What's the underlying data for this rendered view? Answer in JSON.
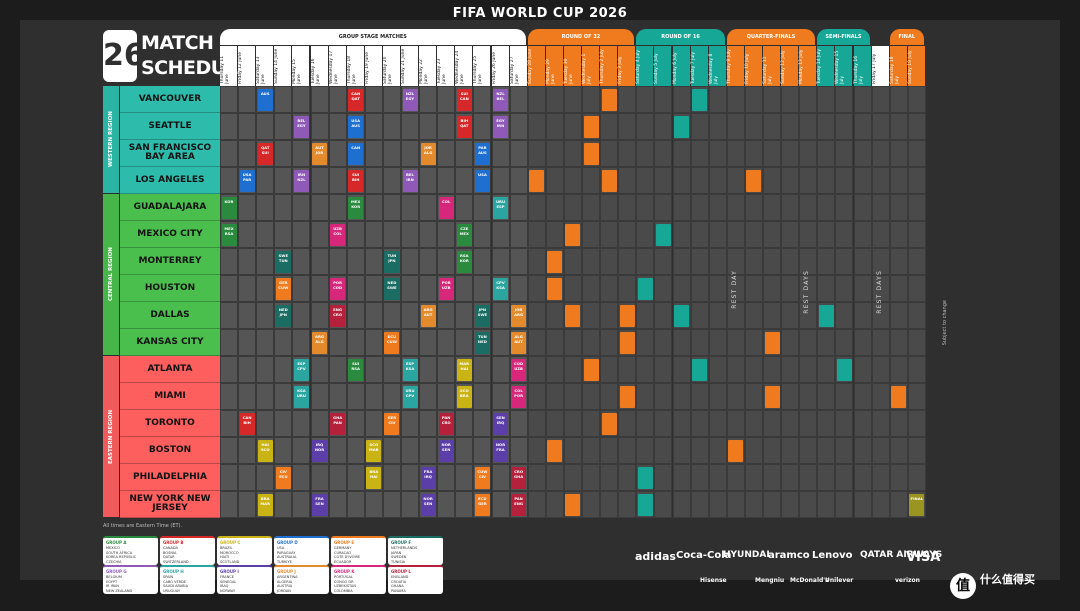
{
  "header": {
    "title": "FIFA WORLD CUP 2026"
  },
  "brand": {
    "year_mark": "26",
    "line1": "MATCH",
    "line2": "SCHEDULE"
  },
  "stages": [
    {
      "label": "GROUP STAGE MATCHES",
      "color": "#ffffff",
      "text": "#222222"
    },
    {
      "label": "ROUND OF 32",
      "color": "#f07b1e",
      "text": "#ffffff"
    },
    {
      "label": "ROUND OF 16",
      "color": "#17a796",
      "text": "#ffffff"
    },
    {
      "label": "QUARTER-FINALS",
      "color": "#f07b1e",
      "text": "#ffffff"
    },
    {
      "label": "SEMI-FINALS",
      "color": "#17a796",
      "text": "#ffffff"
    },
    {
      "label": "FINAL",
      "color": "#f07b1e",
      "text": "#ffffff"
    }
  ],
  "dates": [
    "Thursday 11 June",
    "Friday 12 June",
    "Saturday 13 June",
    "Sunday 14 June",
    "Monday 15 June",
    "Tuesday 16 June",
    "Wednesday 17 June",
    "Thursday 18 June",
    "Friday 19 June",
    "Saturday 20 June",
    "Sunday 21 June",
    "Monday 22 June",
    "Tuesday 23 June",
    "Wednesday 24 June",
    "Thursday 25 June",
    "Friday 26 June",
    "Saturday 27 June",
    "Sunday 28 June",
    "Monday 29 June",
    "Tuesday 30 June",
    "Wednesday 1 July",
    "Thursday 2 July",
    "Friday 3 July",
    "Saturday 4 July",
    "Sunday 5 July",
    "Monday 6 July",
    "Tuesday 7 July",
    "Wednesday 8 July",
    "Thursday 9 July",
    "Friday 10 July",
    "Saturday 11 July",
    "Sunday 12 July",
    "Monday 13 July",
    "Tuesday 14 July",
    "Wednesday 15 July",
    "Thursday 16 July",
    "Friday 17 July",
    "Saturday 18 July",
    "Sunday 19 July"
  ],
  "regions": [
    {
      "label": "WESTERN REGION",
      "color": "#2bb3a3"
    },
    {
      "label": "CENTRAL REGION",
      "color": "#47b649"
    },
    {
      "label": "EASTERN REGION",
      "color": "#f15a5a"
    }
  ],
  "cities": [
    {
      "name": "VANCOUVER",
      "region": 0
    },
    {
      "name": "SEATTLE",
      "region": 0
    },
    {
      "name": "SAN FRANCISCO BAY AREA",
      "region": 0
    },
    {
      "name": "LOS ANGELES",
      "region": 0
    },
    {
      "name": "GUADALAJARA",
      "region": 1
    },
    {
      "name": "MEXICO CITY",
      "region": 1
    },
    {
      "name": "MONTERREY",
      "region": 1
    },
    {
      "name": "HOUSTON",
      "region": 1
    },
    {
      "name": "DALLAS",
      "region": 1
    },
    {
      "name": "KANSAS CITY",
      "region": 1
    },
    {
      "name": "ATLANTA",
      "region": 2
    },
    {
      "name": "MIAMI",
      "region": 2
    },
    {
      "name": "TORONTO",
      "region": 2
    },
    {
      "name": "BOSTON",
      "region": 2
    },
    {
      "name": "PHILADELPHIA",
      "region": 2
    },
    {
      "name": "NEW YORK NEW JERSEY",
      "region": 2
    }
  ],
  "rest_labels": [
    "REST DAY",
    "REST DAYS",
    "REST DAYS"
  ],
  "side_note": "Subject to change",
  "footnote": "All times are Eastern Time (ET).",
  "matches": [
    {
      "r": 0,
      "c": 2,
      "t": "AUS",
      "color": "#1f6fd0"
    },
    {
      "r": 0,
      "c": 7,
      "t": "CAN QAT",
      "color": "#d62828"
    },
    {
      "r": 0,
      "c": 10,
      "t": "NZL EGY",
      "color": "#8e59b7"
    },
    {
      "r": 0,
      "c": 13,
      "t": "SUI CAN",
      "color": "#d62828"
    },
    {
      "r": 0,
      "c": 15,
      "t": "NZL BEL",
      "color": "#8e59b7"
    },
    {
      "r": 0,
      "c": 21,
      "t": "",
      "color": "#f07b1e"
    },
    {
      "r": 0,
      "c": 26,
      "t": "",
      "color": "#17a796"
    },
    {
      "r": 1,
      "c": 4,
      "t": "BEL EGY",
      "color": "#8e59b7"
    },
    {
      "r": 1,
      "c": 7,
      "t": "USA AUS",
      "color": "#1f6fd0"
    },
    {
      "r": 1,
      "c": 13,
      "t": "BIH QAT",
      "color": "#d62828"
    },
    {
      "r": 1,
      "c": 15,
      "t": "EGY IRN",
      "color": "#8e59b7"
    },
    {
      "r": 1,
      "c": 20,
      "t": "",
      "color": "#f07b1e"
    },
    {
      "r": 1,
      "c": 25,
      "t": "",
      "color": "#17a796"
    },
    {
      "r": 2,
      "c": 2,
      "t": "QAT SUI",
      "color": "#d62828"
    },
    {
      "r": 2,
      "c": 5,
      "t": "AUT JOR",
      "color": "#e38b2c"
    },
    {
      "r": 2,
      "c": 7,
      "t": "CAN",
      "color": "#1f6fd0"
    },
    {
      "r": 2,
      "c": 11,
      "t": "JOR ALG",
      "color": "#e38b2c"
    },
    {
      "r": 2,
      "c": 14,
      "t": "PAR AUS",
      "color": "#1f6fd0"
    },
    {
      "r": 2,
      "c": 20,
      "t": "",
      "color": "#f07b1e"
    },
    {
      "r": 3,
      "c": 1,
      "t": "USA PAR",
      "color": "#1f6fd0"
    },
    {
      "r": 3,
      "c": 4,
      "t": "IRN NZL",
      "color": "#8e59b7"
    },
    {
      "r": 3,
      "c": 7,
      "t": "SUI BIH",
      "color": "#d62828"
    },
    {
      "r": 3,
      "c": 10,
      "t": "BEL IRN",
      "color": "#8e59b7"
    },
    {
      "r": 3,
      "c": 14,
      "t": "USA",
      "color": "#1f6fd0"
    },
    {
      "r": 3,
      "c": 17,
      "t": "",
      "color": "#f07b1e"
    },
    {
      "r": 3,
      "c": 21,
      "t": "",
      "color": "#f07b1e"
    },
    {
      "r": 3,
      "c": 29,
      "t": "",
      "color": "#f07b1e"
    },
    {
      "r": 4,
      "c": 0,
      "t": "KOR",
      "color": "#2a8a3e"
    },
    {
      "r": 4,
      "c": 7,
      "t": "MEX KOR",
      "color": "#2a8a3e"
    },
    {
      "r": 4,
      "c": 12,
      "t": "COL",
      "color": "#d6277b"
    },
    {
      "r": 4,
      "c": 15,
      "t": "URU ESP",
      "color": "#2aa5a0"
    },
    {
      "r": 5,
      "c": 0,
      "t": "MEX RSA",
      "color": "#2a8a3e"
    },
    {
      "r": 5,
      "c": 6,
      "t": "UZB COL",
      "color": "#d6277b"
    },
    {
      "r": 5,
      "c": 13,
      "t": "CZE MEX",
      "color": "#2a8a3e"
    },
    {
      "r": 5,
      "c": 19,
      "t": "",
      "color": "#f07b1e"
    },
    {
      "r": 5,
      "c": 24,
      "t": "",
      "color": "#17a796"
    },
    {
      "r": 6,
      "c": 3,
      "t": "SWE TUN",
      "color": "#1b6d63"
    },
    {
      "r": 6,
      "c": 9,
      "t": "TUN JPN",
      "color": "#1b6d63"
    },
    {
      "r": 6,
      "c": 13,
      "t": "RSA KOR",
      "color": "#2a8a3e"
    },
    {
      "r": 6,
      "c": 18,
      "t": "",
      "color": "#f07b1e"
    },
    {
      "r": 7,
      "c": 3,
      "t": "GER CUW",
      "color": "#f07b1e"
    },
    {
      "r": 7,
      "c": 6,
      "t": "POR COD",
      "color": "#d6277b"
    },
    {
      "r": 7,
      "c": 9,
      "t": "NED SWE",
      "color": "#1b6d63"
    },
    {
      "r": 7,
      "c": 12,
      "t": "POR UZB",
      "color": "#d6277b"
    },
    {
      "r": 7,
      "c": 15,
      "t": "CPV KSA",
      "color": "#2aa5a0"
    },
    {
      "r": 7,
      "c": 18,
      "t": "",
      "color": "#f07b1e"
    },
    {
      "r": 7,
      "c": 23,
      "t": "",
      "color": "#17a796"
    },
    {
      "r": 8,
      "c": 3,
      "t": "NED JPN",
      "color": "#1b6d63"
    },
    {
      "r": 8,
      "c": 6,
      "t": "ENG CRO",
      "color": "#b5213b"
    },
    {
      "r": 8,
      "c": 11,
      "t": "ARG AUT",
      "color": "#e38b2c"
    },
    {
      "r": 8,
      "c": 14,
      "t": "JPN SWE",
      "color": "#1b6d63"
    },
    {
      "r": 8,
      "c": 16,
      "t": "JOR ARG",
      "color": "#e38b2c"
    },
    {
      "r": 8,
      "c": 19,
      "t": "",
      "color": "#f07b1e"
    },
    {
      "r": 8,
      "c": 22,
      "t": "",
      "color": "#f07b1e"
    },
    {
      "r": 8,
      "c": 25,
      "t": "",
      "color": "#17a796"
    },
    {
      "r": 8,
      "c": 33,
      "t": "",
      "color": "#17a796"
    },
    {
      "r": 9,
      "c": 5,
      "t": "ARG ALG",
      "color": "#e38b2c"
    },
    {
      "r": 9,
      "c": 9,
      "t": "ECU CUW",
      "color": "#f07b1e"
    },
    {
      "r": 9,
      "c": 14,
      "t": "TUN NED",
      "color": "#1b6d63"
    },
    {
      "r": 9,
      "c": 16,
      "t": "ALG AUT",
      "color": "#e38b2c"
    },
    {
      "r": 9,
      "c": 22,
      "t": "",
      "color": "#f07b1e"
    },
    {
      "r": 9,
      "c": 30,
      "t": "",
      "color": "#f07b1e"
    },
    {
      "r": 10,
      "c": 4,
      "t": "ESP CPV",
      "color": "#2aa5a0"
    },
    {
      "r": 10,
      "c": 7,
      "t": "SUI RSA",
      "color": "#2a8a3e"
    },
    {
      "r": 10,
      "c": 10,
      "t": "ESP KSA",
      "color": "#2aa5a0"
    },
    {
      "r": 10,
      "c": 13,
      "t": "MAR HAI",
      "color": "#c9b315"
    },
    {
      "r": 10,
      "c": 16,
      "t": "COD UZB",
      "color": "#d6277b"
    },
    {
      "r": 10,
      "c": 20,
      "t": "",
      "color": "#f07b1e"
    },
    {
      "r": 10,
      "c": 26,
      "t": "",
      "color": "#17a796"
    },
    {
      "r": 10,
      "c": 34,
      "t": "",
      "color": "#17a796"
    },
    {
      "r": 11,
      "c": 4,
      "t": "KSA URU",
      "color": "#2aa5a0"
    },
    {
      "r": 11,
      "c": 10,
      "t": "URU CPV",
      "color": "#2aa5a0"
    },
    {
      "r": 11,
      "c": 13,
      "t": "SCO BRA",
      "color": "#c9b315"
    },
    {
      "r": 11,
      "c": 16,
      "t": "COL POR",
      "color": "#d6277b"
    },
    {
      "r": 11,
      "c": 22,
      "t": "",
      "color": "#f07b1e"
    },
    {
      "r": 11,
      "c": 30,
      "t": "",
      "color": "#f07b1e"
    },
    {
      "r": 11,
      "c": 37,
      "t": "",
      "color": "#f07b1e"
    },
    {
      "r": 12,
      "c": 1,
      "t": "CAN BIH",
      "color": "#d62828"
    },
    {
      "r": 12,
      "c": 6,
      "t": "GHA PAN",
      "color": "#b5213b"
    },
    {
      "r": 12,
      "c": 9,
      "t": "GER CIV",
      "color": "#f07b1e"
    },
    {
      "r": 12,
      "c": 12,
      "t": "PAN CRO",
      "color": "#b5213b"
    },
    {
      "r": 12,
      "c": 15,
      "t": "SEN IRQ",
      "color": "#5b3ea8"
    },
    {
      "r": 12,
      "c": 21,
      "t": "",
      "color": "#f07b1e"
    },
    {
      "r": 13,
      "c": 2,
      "t": "HAI SCO",
      "color": "#c9b315"
    },
    {
      "r": 13,
      "c": 5,
      "t": "IRQ NOR",
      "color": "#5b3ea8"
    },
    {
      "r": 13,
      "c": 8,
      "t": "SCO MAR",
      "color": "#c9b315"
    },
    {
      "r": 13,
      "c": 12,
      "t": "NOR SEN",
      "color": "#5b3ea8"
    },
    {
      "r": 13,
      "c": 15,
      "t": "NOR FRA",
      "color": "#5b3ea8"
    },
    {
      "r": 13,
      "c": 18,
      "t": "",
      "color": "#f07b1e"
    },
    {
      "r": 13,
      "c": 28,
      "t": "",
      "color": "#f07b1e"
    },
    {
      "r": 14,
      "c": 3,
      "t": "CIV ECU",
      "color": "#f07b1e"
    },
    {
      "r": 14,
      "c": 8,
      "t": "BRA HAI",
      "color": "#c9b315"
    },
    {
      "r": 14,
      "c": 11,
      "t": "FRA IRQ",
      "color": "#5b3ea8"
    },
    {
      "r": 14,
      "c": 14,
      "t": "CUW CIV",
      "color": "#f07b1e"
    },
    {
      "r": 14,
      "c": 16,
      "t": "CRO GHA",
      "color": "#b5213b"
    },
    {
      "r": 14,
      "c": 23,
      "t": "",
      "color": "#17a796"
    },
    {
      "r": 15,
      "c": 2,
      "t": "BRA MAR",
      "color": "#c9b315"
    },
    {
      "r": 15,
      "c": 5,
      "t": "FRA SEN",
      "color": "#5b3ea8"
    },
    {
      "r": 15,
      "c": 11,
      "t": "NOR SEN",
      "color": "#5b3ea8"
    },
    {
      "r": 15,
      "c": 14,
      "t": "ECU GER",
      "color": "#f07b1e"
    },
    {
      "r": 15,
      "c": 16,
      "t": "PAN ENG",
      "color": "#b5213b"
    },
    {
      "r": 15,
      "c": 19,
      "t": "",
      "color": "#f07b1e"
    },
    {
      "r": 15,
      "c": 23,
      "t": "",
      "color": "#17a796"
    },
    {
      "r": 15,
      "c": 38,
      "t": "FINAL",
      "color": "#9a9420"
    }
  ],
  "groups": [
    {
      "name": "GROUP A",
      "color": "#2a8a3e",
      "teams": [
        "MEXICO",
        "SOUTH AFRICA",
        "KOREA REPUBLIC",
        "CZECHIA"
      ]
    },
    {
      "name": "GROUP B",
      "color": "#d62828",
      "teams": [
        "CANADA",
        "BOSNIA",
        "QATAR",
        "SWITZERLAND"
      ]
    },
    {
      "name": "GROUP C",
      "color": "#c9b315",
      "teams": [
        "BRAZIL",
        "MOROCCO",
        "HAITI",
        "SCOTLAND"
      ]
    },
    {
      "name": "GROUP D",
      "color": "#1f6fd0",
      "teams": [
        "USA",
        "PARAGUAY",
        "AUSTRALIA",
        "TURKIYE"
      ]
    },
    {
      "name": "GROUP E",
      "color": "#f07b1e",
      "teams": [
        "GERMANY",
        "CURACAO",
        "COTE D'IVOIRE",
        "ECUADOR"
      ]
    },
    {
      "name": "GROUP F",
      "color": "#1b6d63",
      "teams": [
        "NETHERLANDS",
        "JAPAN",
        "SWEDEN",
        "TUNISIA"
      ]
    },
    {
      "name": "GROUP G",
      "color": "#8e59b7",
      "teams": [
        "BELGIUM",
        "EGYPT",
        "IR IRAN",
        "NEW ZEALAND"
      ]
    },
    {
      "name": "GROUP H",
      "color": "#2aa5a0",
      "teams": [
        "SPAIN",
        "CABO VERDE",
        "SAUDI ARABIA",
        "URUGUAY"
      ]
    },
    {
      "name": "GROUP I",
      "color": "#5b3ea8",
      "teams": [
        "FRANCE",
        "SENEGAL",
        "IRAQ",
        "NORWAY"
      ]
    },
    {
      "name": "GROUP J",
      "color": "#e38b2c",
      "teams": [
        "ARGENTINA",
        "ALGERIA",
        "AUSTRIA",
        "JORDAN"
      ]
    },
    {
      "name": "GROUP K",
      "color": "#d6277b",
      "teams": [
        "PORTUGAL",
        "CONGO DR",
        "UZBEKISTAN",
        "COLOMBIA"
      ]
    },
    {
      "name": "GROUP L",
      "color": "#b5213b",
      "teams": [
        "ENGLAND",
        "CROATIA",
        "GHANA",
        "PANAMA"
      ]
    }
  ],
  "sponsors_row1": [
    "adidas",
    "Coca-Cola",
    "HYUNDAI",
    "aramco",
    "Lenovo",
    "QATAR AIRWAYS",
    "VISA"
  ],
  "sponsors_row2": [
    "Hisense",
    "Mengniu",
    "McDonald's",
    "Unilever",
    "verizon"
  ],
  "emblem": {
    "mark": "值",
    "text": "什么值得买"
  }
}
